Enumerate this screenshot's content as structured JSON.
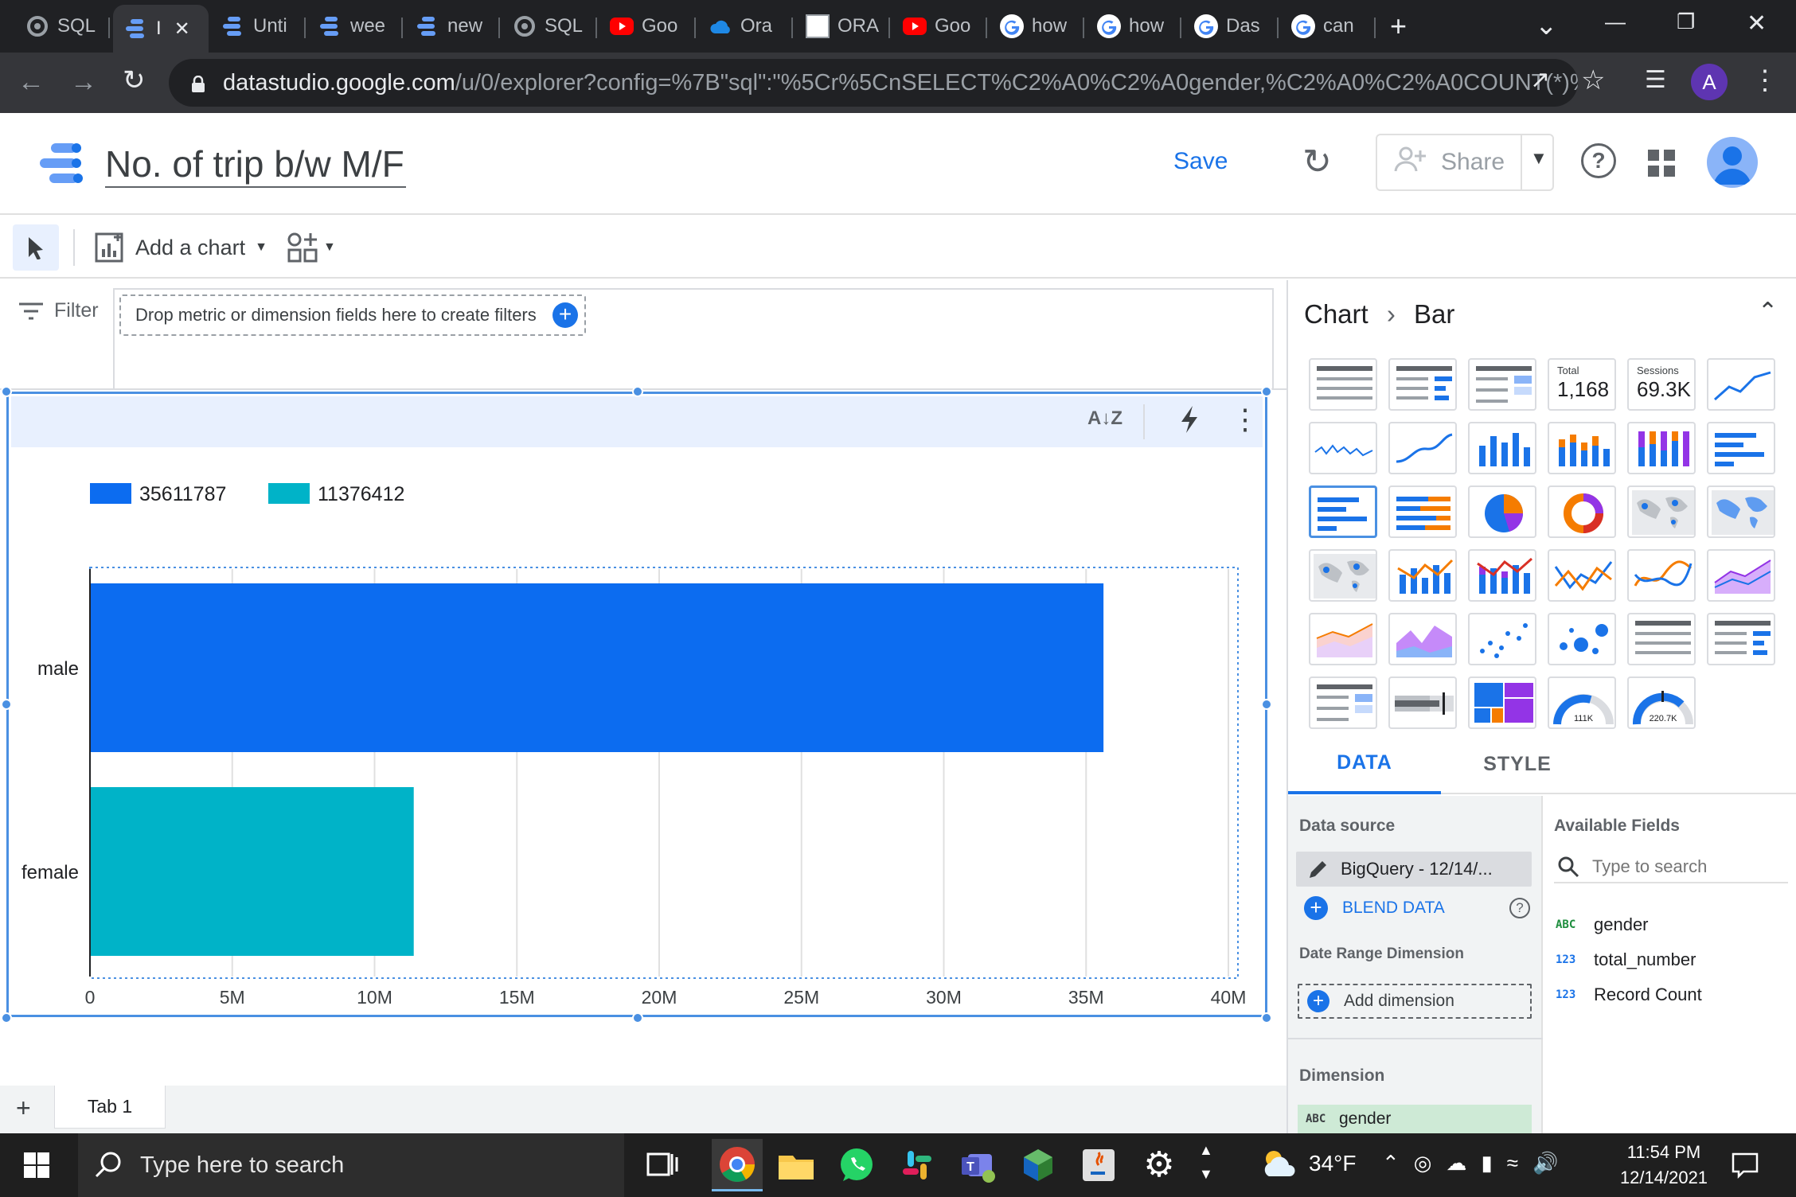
{
  "browser": {
    "tabs": [
      {
        "label": "SQL",
        "icon": "gear-favicon",
        "color": "#9aa0a6"
      },
      {
        "label": "I",
        "icon": "datastudio-favicon",
        "color": "#669df6",
        "active": true
      },
      {
        "label": "Unti",
        "icon": "datastudio-favicon",
        "color": "#669df6"
      },
      {
        "label": "wee",
        "icon": "datastudio-favicon",
        "color": "#669df6"
      },
      {
        "label": "new",
        "icon": "datastudio-favicon",
        "color": "#669df6"
      },
      {
        "label": "SQL",
        "icon": "gear-favicon",
        "color": "#9aa0a6"
      },
      {
        "label": "Goo",
        "icon": "youtube-favicon",
        "color": "#ff0000"
      },
      {
        "label": "Ora",
        "icon": "cloud-favicon",
        "color": "#1e88e5"
      },
      {
        "label": "ORA",
        "icon": "bg-favicon",
        "color": "#ffffff"
      },
      {
        "label": "Goo",
        "icon": "youtube-favicon",
        "color": "#ff0000"
      },
      {
        "label": "how",
        "icon": "google-favicon",
        "color": "#ffffff"
      },
      {
        "label": "how",
        "icon": "google-favicon",
        "color": "#ffffff"
      },
      {
        "label": "Das",
        "icon": "google-favicon",
        "color": "#ffffff"
      },
      {
        "label": "can",
        "icon": "google-favicon",
        "color": "#ffffff"
      }
    ],
    "url_host": "datastudio.google.com",
    "url_rest": "/u/0/explorer?config=%7B\"sql\":\"%5Cr%5CnSELECT%C2%A0%C2%A0gender,%C2%A0%C2%A0COUNT(*)%...",
    "profile_initial": "A"
  },
  "header": {
    "title": "No. of trip b/w M/F",
    "save_label": "Save",
    "share_label": "Share"
  },
  "toolbar": {
    "add_chart_label": "Add a chart"
  },
  "filter": {
    "label": "Filter",
    "drop_hint": "Drop metric or dimension fields here to create filters"
  },
  "page_tabs": {
    "tab1": "Tab 1"
  },
  "chart_data": {
    "type": "bar",
    "orientation": "horizontal",
    "categories": [
      "male",
      "female"
    ],
    "values": [
      35611787,
      11376412
    ],
    "legend": [
      "35611787",
      "11376412"
    ],
    "colors": [
      "#0c6cf0",
      "#00b3c8"
    ],
    "xlim": [
      0,
      40000000
    ],
    "xticks": [
      0,
      5000000,
      10000000,
      15000000,
      20000000,
      25000000,
      30000000,
      35000000,
      40000000
    ],
    "xtick_labels": [
      "0",
      "5M",
      "10M",
      "15M",
      "20M",
      "25M",
      "30M",
      "35M",
      "40M"
    ],
    "grid": true,
    "legend_position": "top-left"
  },
  "panel": {
    "crumb_chart": "Chart",
    "crumb_type": "Bar",
    "scorecard1_label": "Total",
    "scorecard1_value": "1,168",
    "scorecard2_label": "Sessions",
    "scorecard2_value": "69.3K",
    "gauge1_value": "111K",
    "gauge2_value": "220.7K",
    "tab_data": "DATA",
    "tab_style": "STYLE",
    "data_source_label": "Data source",
    "data_source_value": "BigQuery - 12/14/...",
    "blend_label": "BLEND DATA",
    "date_range_label": "Date Range Dimension",
    "add_dimension_label": "Add dimension",
    "dimension_label": "Dimension",
    "dimension_value": "gender",
    "available_fields_label": "Available Fields",
    "search_placeholder": "Type to search",
    "fields": [
      {
        "type": "ABC",
        "name": "gender"
      },
      {
        "type": "123",
        "name": "total_number"
      },
      {
        "type": "123",
        "name": "Record Count"
      }
    ]
  },
  "taskbar": {
    "search_placeholder": "Type here to search",
    "weather": "34°F",
    "time": "11:54 PM",
    "date": "12/14/2021"
  }
}
